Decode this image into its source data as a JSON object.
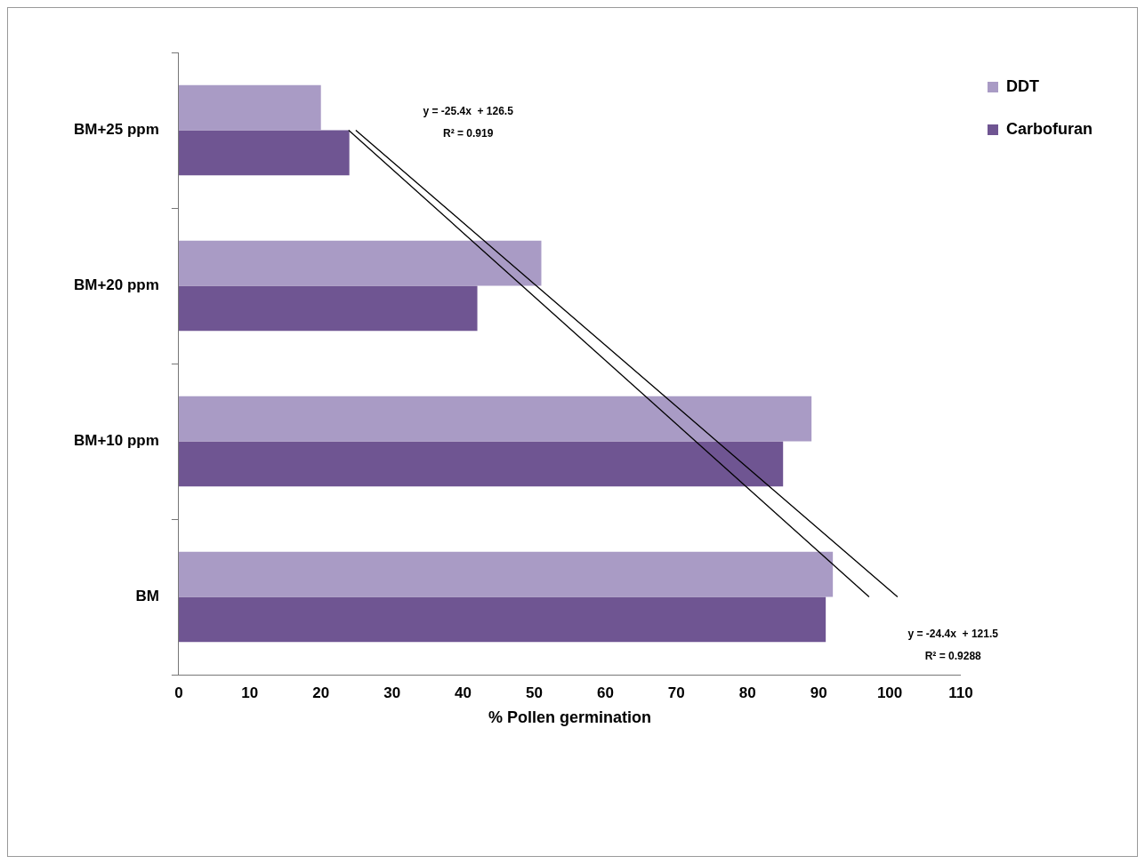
{
  "chart_data": {
    "type": "bar",
    "orientation": "horizontal",
    "xlabel": "% Pollen germination",
    "categories": [
      "BM+25 ppm",
      "BM+20 ppm",
      "BM+10 ppm",
      "BM"
    ],
    "series": [
      {
        "name": "DDT",
        "color": "#a99bc5",
        "values": [
          20,
          51,
          89,
          92
        ]
      },
      {
        "name": "Carbofuran",
        "color": "#6f5592",
        "values": [
          24,
          42,
          85,
          91
        ]
      },
      {
        "type": "line",
        "color": "#000000",
        "values": [
          24.9,
          50.3,
          75.7,
          101.1
        ]
      },
      {
        "type": "line",
        "color": "#000000",
        "values": [
          23.9,
          48.3,
          72.7,
          97.1
        ]
      }
    ],
    "xlim": [
      0,
      110
    ],
    "xticks": [
      0,
      10,
      20,
      30,
      40,
      50,
      60,
      70,
      80,
      90,
      100,
      110
    ],
    "legend": "top right",
    "marker": "none",
    "annotations": [
      "y = -25.4x  + 126.5",
      "R² = 0.919",
      "y = -24.4x  + 121.5",
      "R² = 0.9288"
    ]
  }
}
